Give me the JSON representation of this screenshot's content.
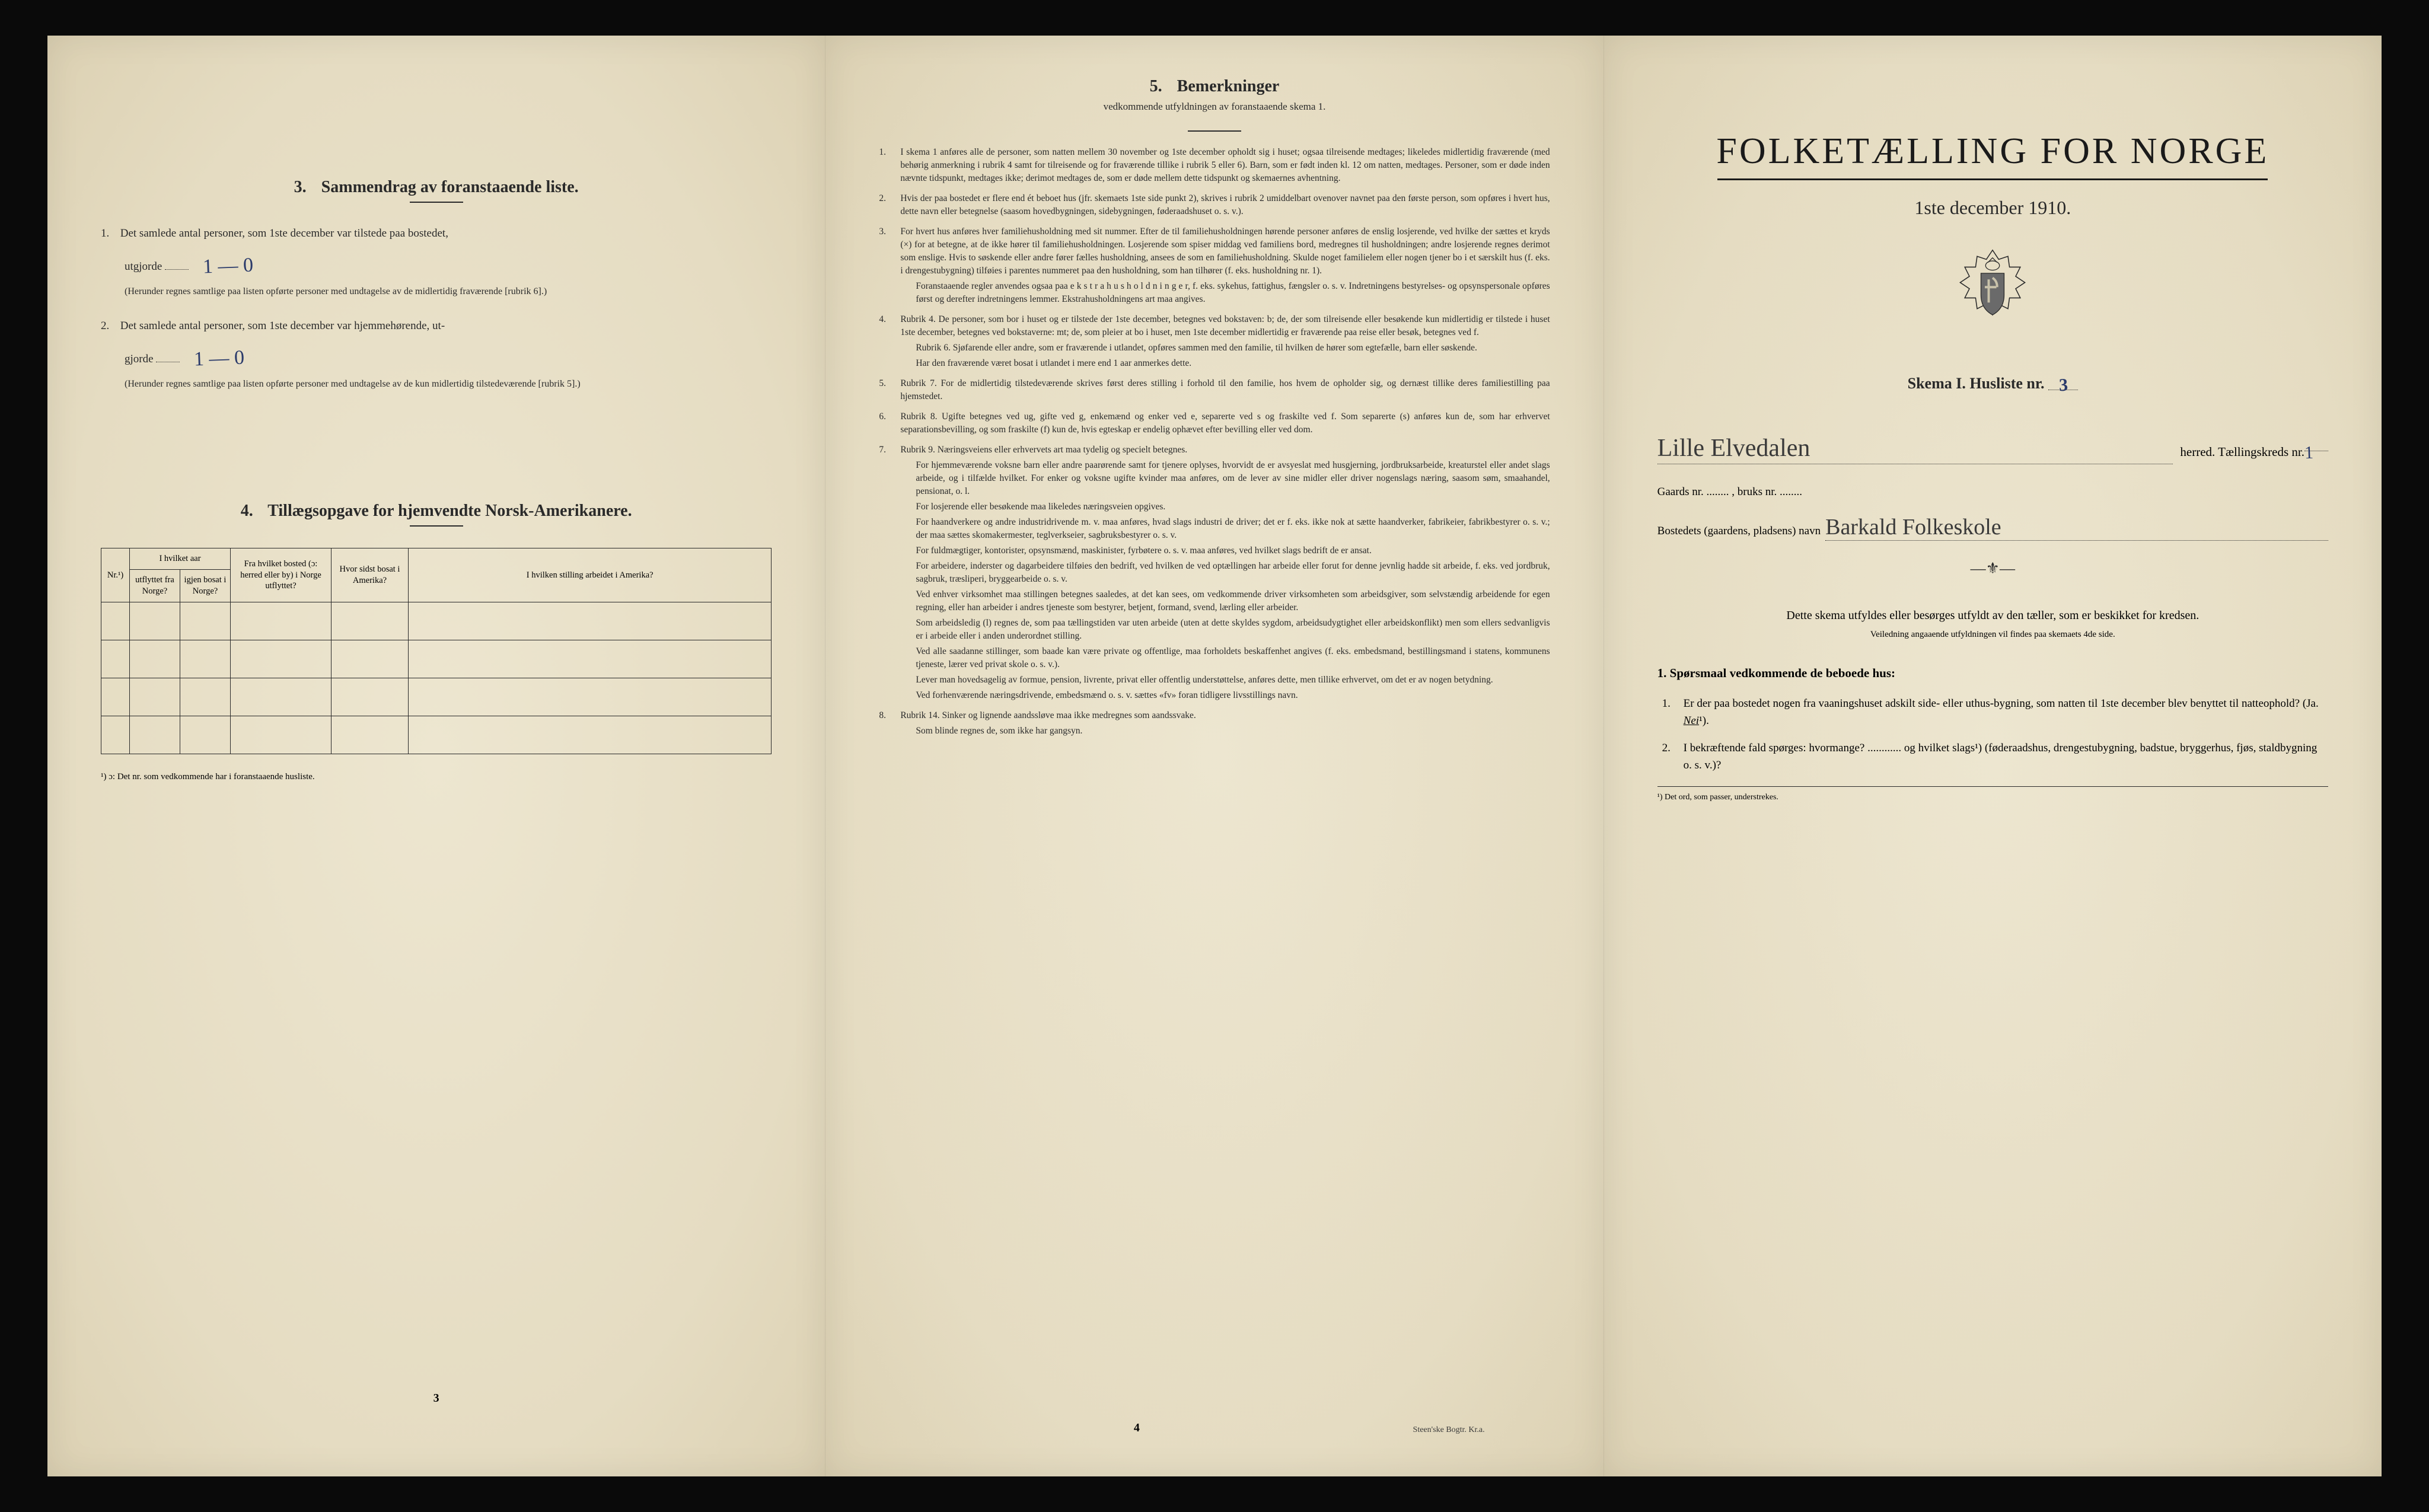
{
  "page_left": {
    "section3": {
      "number": "3.",
      "title": "Sammendrag av foranstaaende liste.",
      "item1_lead": "1.",
      "item1_text_a": "Det samlede antal personer, som 1ste december var tilstede paa bostedet,",
      "item1_utgjorde": "utgjorde",
      "item1_hand_top": "1 — 0",
      "item1_note": "(Herunder regnes samtlige paa listen opførte personer med undtagelse av de midlertidig fraværende [rubrik 6].)",
      "item2_lead": "2.",
      "item2_text_a": "Det samlede antal personer, som 1ste december var hjemmehørende, ut-",
      "item2_gjorde": "gjorde",
      "item2_hand_top": "1 — 0",
      "item2_note": "(Herunder regnes samtlige paa listen opførte personer med undtagelse av de kun midlertidig tilstedeværende [rubrik 5].)"
    },
    "section4": {
      "number": "4.",
      "title": "Tillægsopgave for hjemvendte Norsk-Amerikanere.",
      "columns": {
        "c0": "Nr.¹)",
        "c1_span": "I hvilket aar",
        "c1a": "utflyttet fra Norge?",
        "c1b": "igjen bosat i Norge?",
        "c2": "Fra hvilket bosted (ɔ: herred eller by) i Norge utflyttet?",
        "c3": "Hvor sidst bosat i Amerika?",
        "c4": "I hvilken stilling arbeidet i Amerika?"
      },
      "empty_rows": 4,
      "footnote": "¹) ɔ: Det nr. som vedkommende har i foranstaaende husliste."
    },
    "page_number": "3"
  },
  "page_middle": {
    "number": "5.",
    "title": "Bemerkninger",
    "subtitle": "vedkommende utfyldningen av foranstaaende skema 1.",
    "items": [
      {
        "n": "1.",
        "text": "I skema 1 anføres alle de personer, som natten mellem 30 november og 1ste december opholdt sig i huset; ogsaa tilreisende medtages; likeledes midlertidig fraværende (med behørig anmerkning i rubrik 4 samt for tilreisende og for fraværende tillike i rubrik 5 eller 6). Barn, som er født inden kl. 12 om natten, medtages. Personer, som er døde inden nævnte tidspunkt, medtages ikke; derimot medtages de, som er døde mellem dette tidspunkt og skemaernes avhentning."
      },
      {
        "n": "2.",
        "text": "Hvis der paa bostedet er flere end ét beboet hus (jfr. skemaets 1ste side punkt 2), skrives i rubrik 2 umiddelbart ovenover navnet paa den første person, som opføres i hvert hus, dette navn eller betegnelse (saasom hovedbygningen, sidebygningen, føderaadshuset o. s. v.)."
      },
      {
        "n": "3.",
        "text": "For hvert hus anføres hver familiehusholdning med sit nummer. Efter de til familiehusholdningen hørende personer anføres de enslig losjerende, ved hvilke der sættes et kryds (×) for at betegne, at de ikke hører til familiehusholdningen. Losjerende som spiser middag ved familiens bord, medregnes til husholdningen; andre losjerende regnes derimot som enslige. Hvis to søskende eller andre fører fælles husholdning, ansees de som en familiehusholdning. Skulde noget familielem eller nogen tjener bo i et særskilt hus (f. eks. i drengestubygning) tilføies i parentes nummeret paa den husholdning, som han tilhører (f. eks. husholdning nr. 1).",
        "subs": [
          "Foranstaaende regler anvendes ogsaa paa e k s t r a h u s h o l d n i n g e r, f. eks. sykehus, fattighus, fængsler o. s. v. Indretningens bestyrelses- og opsynspersonale opføres først og derefter indretningens lemmer. Ekstrahusholdningens art maa angives."
        ]
      },
      {
        "n": "4.",
        "text": "Rubrik 4. De personer, som bor i huset og er tilstede der 1ste december, betegnes ved bokstaven: b; de, der som tilreisende eller besøkende kun midlertidig er tilstede i huset 1ste december, betegnes ved bokstaverne: mt; de, som pleier at bo i huset, men 1ste december midlertidig er fraværende paa reise eller besøk, betegnes ved f.",
        "subs": [
          "Rubrik 6. Sjøfarende eller andre, som er fraværende i utlandet, opføres sammen med den familie, til hvilken de hører som egtefælle, barn eller søskende.",
          "Har den fraværende været bosat i utlandet i mere end 1 aar anmerkes dette."
        ]
      },
      {
        "n": "5.",
        "text": "Rubrik 7. For de midlertidig tilstedeværende skrives først deres stilling i forhold til den familie, hos hvem de opholder sig, og dernæst tillike deres familiestilling paa hjemstedet."
      },
      {
        "n": "6.",
        "text": "Rubrik 8. Ugifte betegnes ved ug, gifte ved g, enkemænd og enker ved e, separerte ved s og fraskilte ved f. Som separerte (s) anføres kun de, som har erhvervet separationsbevilling, og som fraskilte (f) kun de, hvis egteskap er endelig ophævet efter bevilling eller ved dom."
      },
      {
        "n": "7.",
        "text": "Rubrik 9. Næringsveiens eller erhvervets art maa tydelig og specielt betegnes.",
        "subs": [
          "For hjemmeværende voksne barn eller andre paarørende samt for tjenere oplyses, hvorvidt de er avsyeslat med husgjerning, jordbruksarbeide, kreaturstel eller andet slags arbeide, og i tilfælde hvilket. For enker og voksne ugifte kvinder maa anføres, om de lever av sine midler eller driver nogenslags næring, saasom søm, smaahandel, pensionat, o. l.",
          "For losjerende eller besøkende maa likeledes næringsveien opgives.",
          "For haandverkere og andre industridrivende m. v. maa anføres, hvad slags industri de driver; det er f. eks. ikke nok at sætte haandverker, fabrikeier, fabrikbestyrer o. s. v.; der maa sættes skomakermester, teglverkseier, sagbruksbestyrer o. s. v.",
          "For fuldmægtiger, kontorister, opsynsmænd, maskinister, fyrbøtere o. s. v. maa anføres, ved hvilket slags bedrift de er ansat.",
          "For arbeidere, inderster og dagarbeidere tilføies den bedrift, ved hvilken de ved optællingen har arbeide eller forut for denne jevnlig hadde sit arbeide, f. eks. ved jordbruk, sagbruk, træsliperi, bryggearbeide o. s. v.",
          "Ved enhver virksomhet maa stillingen betegnes saaledes, at det kan sees, om vedkommende driver virksomheten som arbeidsgiver, som selvstændig arbeidende for egen regning, eller han arbeider i andres tjeneste som bestyrer, betjent, formand, svend, lærling eller arbeider.",
          "Som arbeidsledig (l) regnes de, som paa tællingstiden var uten arbeide (uten at dette skyldes sygdom, arbeidsudygtighet eller arbeidskonflikt) men som ellers sedvanligvis er i arbeide eller i anden underordnet stilling.",
          "Ved alle saadanne stillinger, som baade kan være private og offentlige, maa forholdets beskaffenhet angives (f. eks. embedsmand, bestillingsmand i statens, kommunens tjeneste, lærer ved privat skole o. s. v.).",
          "Lever man hovedsagelig av formue, pension, livrente, privat eller offentlig understøttelse, anføres dette, men tillike erhvervet, om det er av nogen betydning.",
          "Ved forhenværende næringsdrivende, embedsmænd o. s. v. sættes «fv» foran tidligere livsstillings navn."
        ]
      },
      {
        "n": "8.",
        "text": "Rubrik 14. Sinker og lignende aandssløve maa ikke medregnes som aandssvake.",
        "subs": [
          "Som blinde regnes de, som ikke har gangsyn."
        ]
      }
    ],
    "page_number": "4",
    "footer": "Steen'ske Bogtr.   Kr.a."
  },
  "page_right": {
    "main_title": "FOLKETÆLLING FOR NORGE",
    "subtitle": "1ste december 1910.",
    "skema_text_a": "Skema I.   Husliste nr.",
    "skema_hand": "3",
    "herred_hand": "Lille Elvedalen",
    "herred_text": "herred.   Tællingskreds nr.",
    "herred_num_hand": "1",
    "gaards_text": "Gaards nr. ........ , bruks nr. ........",
    "bosted_text": "Bostedets (gaardens, pladsens) navn",
    "bosted_hand": "Barkald Folkeskole",
    "para1": "Dette skema utfyldes eller besørges utfyldt av den tæller, som er beskikket for kredsen.",
    "para2": "Veiledning angaaende utfyldningen vil findes paa skemaets 4de side.",
    "q_heading": "1. Spørsmaal vedkommende de beboede hus:",
    "q1_n": "1.",
    "q1": "Er der paa bostedet nogen fra vaaningshuset adskilt side- eller uthus-bygning, som natten til 1ste december blev benyttet til natteophold?  (Ja.",
    "q1_nei": "Nei",
    "q1_sup": "¹).",
    "q2_n": "2.",
    "q2": "I bekræftende fald spørges: hvormange? ............ og hvilket slags¹) (føderaadshus, drengestubygning, badstue, bryggerhus, fjøs, staldbygning o. s. v.)?",
    "bottom_note": "¹) Det ord, som passer, understrekes."
  }
}
